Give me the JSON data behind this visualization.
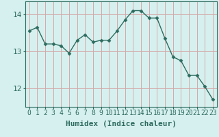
{
  "x": [
    0,
    1,
    2,
    3,
    4,
    5,
    6,
    7,
    8,
    9,
    10,
    11,
    12,
    13,
    14,
    15,
    16,
    17,
    18,
    19,
    20,
    21,
    22,
    23
  ],
  "y": [
    13.55,
    13.65,
    13.2,
    13.2,
    13.15,
    12.95,
    13.3,
    13.45,
    13.25,
    13.3,
    13.3,
    13.55,
    13.85,
    14.1,
    14.1,
    13.9,
    13.9,
    13.35,
    12.85,
    12.75,
    12.35,
    12.35,
    12.05,
    11.7
  ],
  "line_color": "#2e6b5e",
  "marker": "D",
  "marker_size": 2.5,
  "bg_color": "#d6f0ef",
  "grid_color": "#d4a8a8",
  "xlabel": "Humidex (Indice chaleur)",
  "xlim": [
    -0.5,
    23.5
  ],
  "ylim": [
    11.5,
    14.35
  ],
  "yticks": [
    12,
    13,
    14
  ],
  "xticks": [
    0,
    1,
    2,
    3,
    4,
    5,
    6,
    7,
    8,
    9,
    10,
    11,
    12,
    13,
    14,
    15,
    16,
    17,
    18,
    19,
    20,
    21,
    22,
    23
  ],
  "xlabel_fontsize": 8,
  "tick_fontsize": 7,
  "tick_color": "#2e6b5e",
  "axis_color": "#555555",
  "line_width": 1.0
}
